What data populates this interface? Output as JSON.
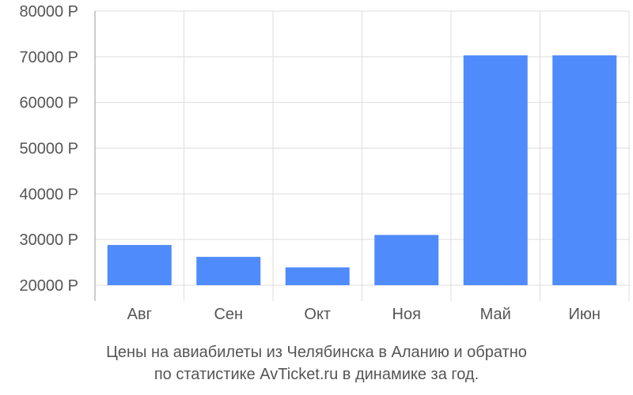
{
  "chart_data": {
    "type": "bar",
    "categories": [
      "Авг",
      "Сен",
      "Окт",
      "Ноя",
      "Май",
      "Июн"
    ],
    "values": [
      28800,
      26200,
      23900,
      31000,
      70300,
      70300
    ],
    "ylim": [
      20000,
      80000
    ],
    "yticks": [
      20000,
      30000,
      40000,
      50000,
      60000,
      70000,
      80000
    ],
    "ytick_labels": [
      "20000 Р",
      "30000 Р",
      "40000 Р",
      "50000 Р",
      "60000 Р",
      "70000 Р",
      "80000 Р"
    ],
    "grid": true,
    "bar_color": "#4f8bfb"
  },
  "caption": {
    "line1": "Цены на авиабилеты из Челябинска в Аланию и обратно",
    "line2": "по статистике AvTicket.ru в динамике за год."
  }
}
